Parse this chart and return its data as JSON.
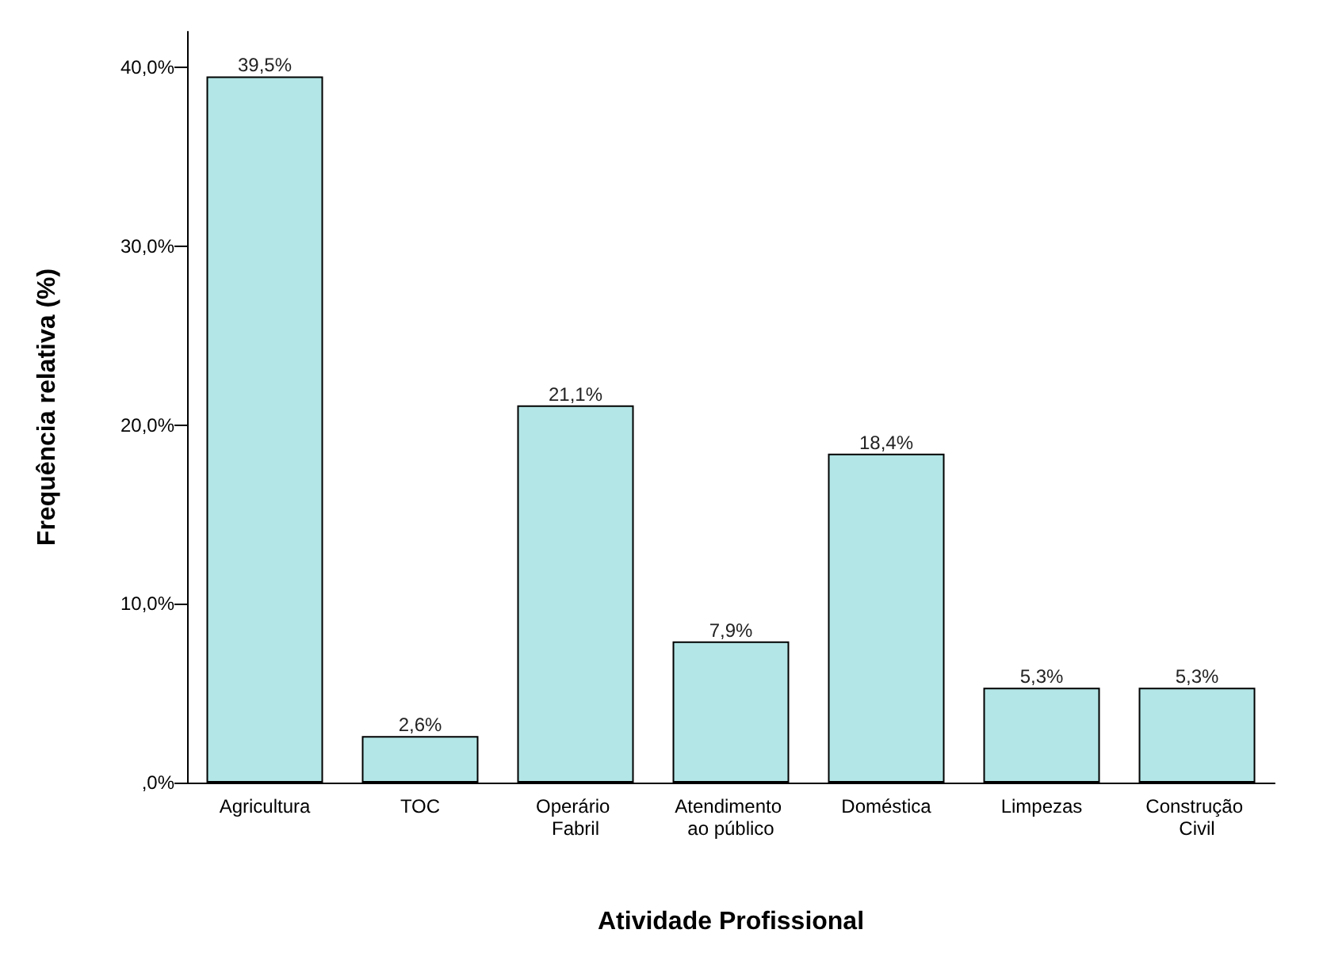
{
  "chart_data": {
    "type": "bar",
    "xlabel": "Atividade Profissional",
    "ylabel": "Frequência relativa (%)",
    "categories": [
      "Agricultura",
      "TOC",
      "Operário Fabril",
      "Atendimento ao público",
      "Doméstica",
      "Limpezas",
      "Construção Civil"
    ],
    "values": [
      39.5,
      2.6,
      21.1,
      7.9,
      18.4,
      5.3,
      5.3
    ],
    "value_labels": [
      "39,5%",
      "2,6%",
      "21,1%",
      "7,9%",
      "18,4%",
      "5,3%",
      "5,3%"
    ],
    "color": "#b3e6e6",
    "ylim": [
      0,
      42
    ],
    "yticks": [
      {
        "value": 0,
        "label": ",0%"
      },
      {
        "value": 10,
        "label": "10,0%"
      },
      {
        "value": 20,
        "label": "20,0%"
      },
      {
        "value": 30,
        "label": "30,0%"
      },
      {
        "value": 40,
        "label": "40,0%"
      }
    ],
    "grid": false
  }
}
